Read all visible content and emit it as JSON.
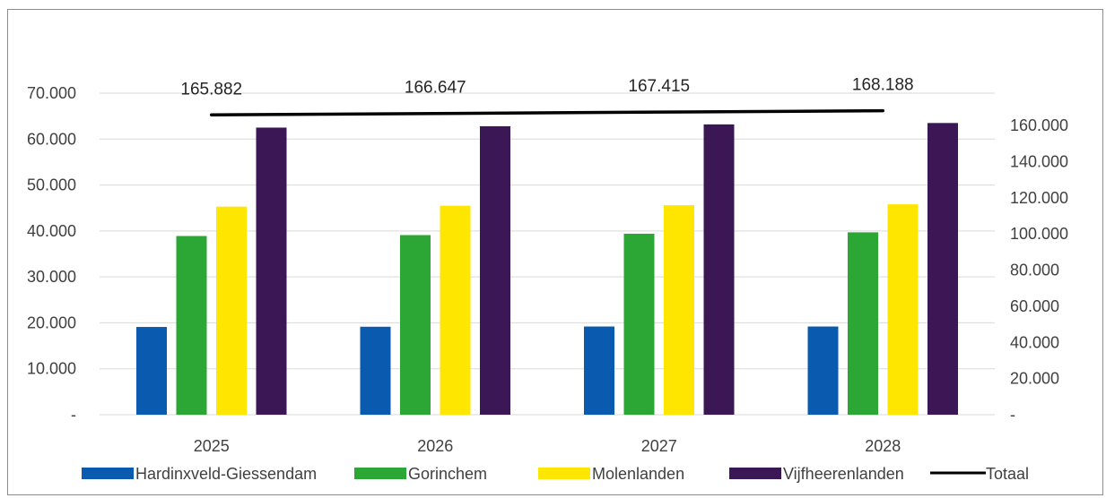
{
  "chart_data": {
    "type": "bar",
    "categories": [
      "2025",
      "2026",
      "2027",
      "2028"
    ],
    "series": [
      {
        "name": "Hardinxveld-Giessendam",
        "axis": "left",
        "color": "#0a5bb0",
        "values": [
          19100,
          19150,
          19200,
          19200
        ]
      },
      {
        "name": "Gorinchem",
        "axis": "left",
        "color": "#2ca634",
        "values": [
          38900,
          39100,
          39400,
          39700
        ]
      },
      {
        "name": "Molenlanden",
        "axis": "left",
        "color": "#ffe600",
        "values": [
          45300,
          45500,
          45600,
          45800
        ]
      },
      {
        "name": "Vijfheerenlanden",
        "axis": "left",
        "color": "#3b1756",
        "values": [
          62500,
          62800,
          63200,
          63500
        ]
      }
    ],
    "line_series": {
      "name": "Totaal",
      "axis": "right",
      "color": "#000000",
      "values": [
        165882,
        166647,
        167415,
        168188
      ],
      "data_labels": [
        "165.882",
        "166.647",
        "167.415",
        "168.188"
      ]
    },
    "left_axis": {
      "ylim": [
        0,
        70000
      ],
      "ticks": [
        0,
        10000,
        20000,
        30000,
        40000,
        50000,
        60000,
        70000
      ],
      "tick_labels": [
        "-",
        "10.000",
        "20.000",
        "30.000",
        "40.000",
        "50.000",
        "60.000",
        "70.000"
      ]
    },
    "right_axis": {
      "ylim": [
        0,
        168000
      ],
      "ticks": [
        0,
        20000,
        40000,
        60000,
        80000,
        100000,
        120000,
        140000,
        160000
      ],
      "tick_labels": [
        "-",
        "20.000",
        "40.000",
        "60.000",
        "80.000",
        "100.000",
        "120.000",
        "140.000",
        "160.000"
      ]
    },
    "grid": true,
    "legend": "bottom"
  }
}
